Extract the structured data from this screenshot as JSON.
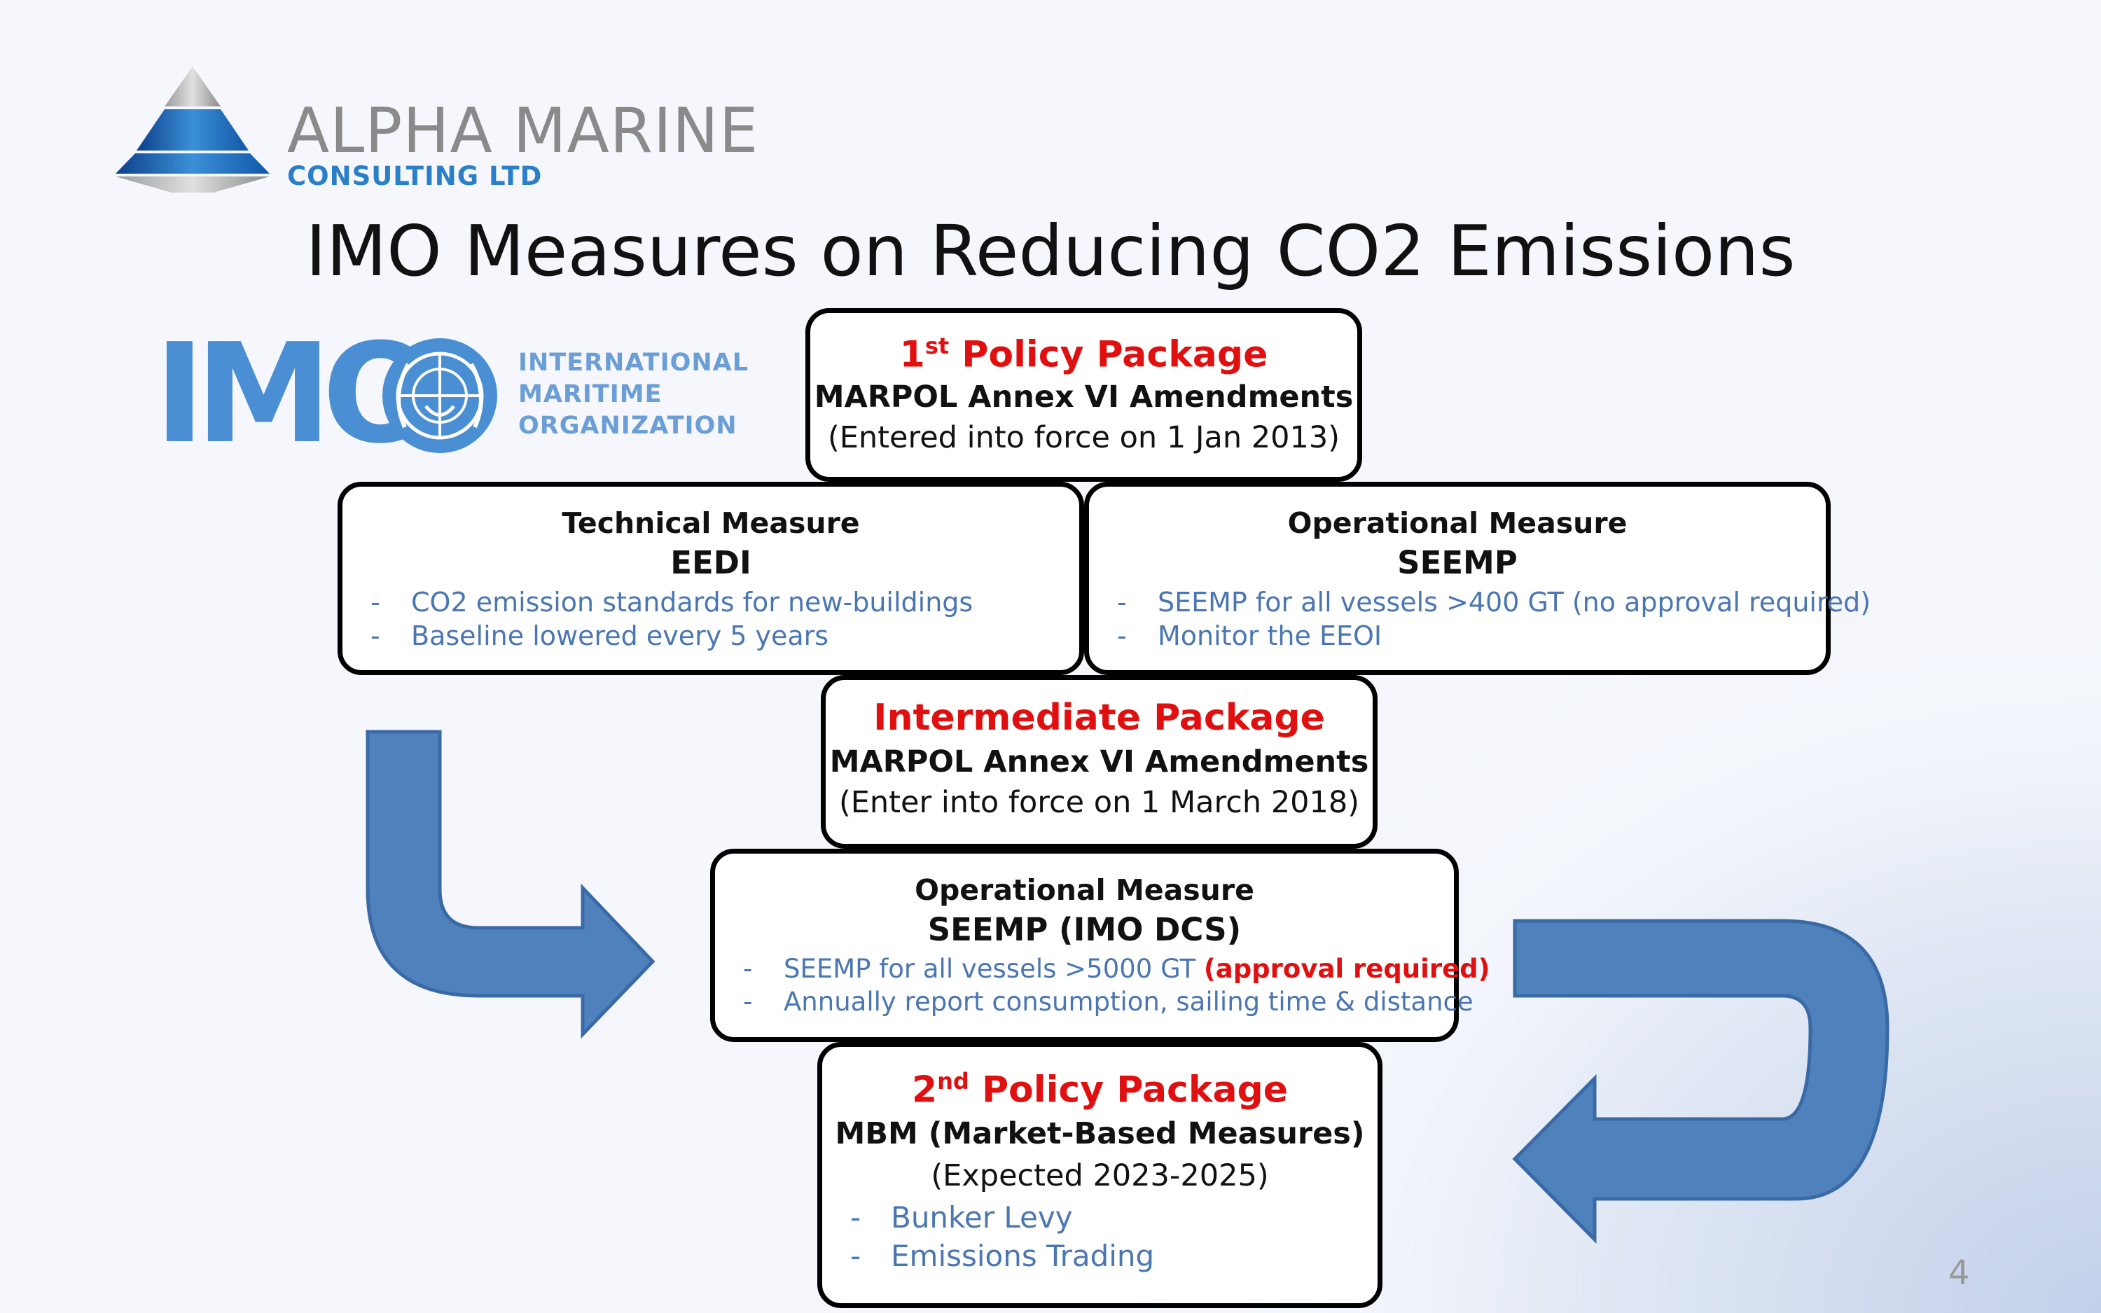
{
  "logo": {
    "main": "ALPHA MARINE",
    "sub": "CONSULTING LTD"
  },
  "imo_logo": {
    "mark": "IMO",
    "lines": [
      "INTERNATIONAL",
      "MARITIME",
      "ORGANIZATION"
    ]
  },
  "title": "IMO Measures on Reducing CO2 Emissions",
  "policy1": {
    "num": "1",
    "sup": "st",
    "heading": "Policy Package",
    "line1": "MARPOL Annex VI Amendments",
    "line2": "(Entered into force on 1 Jan 2013)"
  },
  "technical": {
    "label": "Technical Measure",
    "name": "EEDI",
    "bullets": [
      "CO2 emission standards for new-buildings",
      "Baseline lowered every 5 years"
    ]
  },
  "operational": {
    "label": "Operational Measure",
    "name": "SEEMP",
    "bullets": [
      "SEEMP for all vessels >400 GT (no approval required)",
      "Monitor the EEOI"
    ]
  },
  "intermediate": {
    "heading": "Intermediate Package",
    "line1": "MARPOL Annex VI Amendments",
    "line2": "(Enter into force on 1 March 2018)"
  },
  "dcs": {
    "label": "Operational Measure",
    "name": "SEEMP (IMO DCS)",
    "bullet1": "SEEMP for all vessels >5000 GT ",
    "bullet1_red": "(approval required)",
    "bullet2": "Annually report consumption, sailing time & distance"
  },
  "policy2": {
    "num": "2",
    "sup": "nd",
    "heading": "Policy Package",
    "line1": "MBM (Market-Based Measures)",
    "line2": "(Expected 2023-2025)",
    "bullets": [
      "Bunker Levy",
      "Emissions Trading"
    ]
  },
  "bullet_mark": "-",
  "page_number": "4",
  "colors": {
    "accent_red": "#e01010",
    "arrow_blue": "#4f81bd",
    "bullet_blue": "#4a76b2"
  }
}
